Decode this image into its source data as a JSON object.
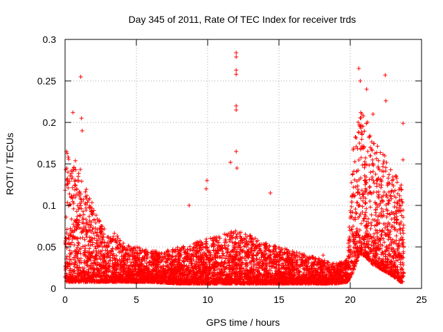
{
  "chart_data": {
    "type": "scatter",
    "title": "Day 345 of 2011, Rate Of TEC Index for receiver trds",
    "xlabel": "GPS time / hours",
    "ylabel": "ROTI / TECUs",
    "xlim": [
      0,
      25
    ],
    "ylim": [
      0,
      0.3
    ],
    "xticks": [
      0,
      5,
      10,
      15,
      20,
      25
    ],
    "yticks": [
      0,
      0.05,
      0.1,
      0.15,
      0.2,
      0.25,
      0.3
    ],
    "xtick_labels": [
      "0",
      "5",
      "10",
      "15",
      "20",
      "25"
    ],
    "ytick_labels": [
      "0",
      "0.05",
      "0.1",
      "0.15",
      "0.2",
      "0.25",
      "0.3"
    ],
    "grid": true,
    "grid_style": "dotted",
    "legend": "none",
    "marker": "+",
    "marker_color": "#ff0000",
    "point_count_approx": 6000,
    "envelope": [
      {
        "x": 0.0,
        "low": 0.008,
        "high": 0.17
      },
      {
        "x": 0.5,
        "low": 0.008,
        "high": 0.16
      },
      {
        "x": 1.0,
        "low": 0.008,
        "high": 0.15
      },
      {
        "x": 1.5,
        "low": 0.008,
        "high": 0.12
      },
      {
        "x": 2.0,
        "low": 0.008,
        "high": 0.1
      },
      {
        "x": 2.5,
        "low": 0.008,
        "high": 0.08
      },
      {
        "x": 3.0,
        "low": 0.008,
        "high": 0.065
      },
      {
        "x": 3.5,
        "low": 0.008,
        "high": 0.07
      },
      {
        "x": 4.0,
        "low": 0.008,
        "high": 0.055
      },
      {
        "x": 5.0,
        "low": 0.008,
        "high": 0.05
      },
      {
        "x": 6.0,
        "low": 0.008,
        "high": 0.045
      },
      {
        "x": 7.0,
        "low": 0.007,
        "high": 0.045
      },
      {
        "x": 8.0,
        "low": 0.006,
        "high": 0.05
      },
      {
        "x": 9.0,
        "low": 0.006,
        "high": 0.055
      },
      {
        "x": 10.0,
        "low": 0.006,
        "high": 0.06
      },
      {
        "x": 11.0,
        "low": 0.006,
        "high": 0.065
      },
      {
        "x": 12.0,
        "low": 0.006,
        "high": 0.07
      },
      {
        "x": 13.0,
        "low": 0.006,
        "high": 0.065
      },
      {
        "x": 14.0,
        "low": 0.006,
        "high": 0.055
      },
      {
        "x": 15.0,
        "low": 0.006,
        "high": 0.05
      },
      {
        "x": 16.0,
        "low": 0.006,
        "high": 0.045
      },
      {
        "x": 17.0,
        "low": 0.006,
        "high": 0.04
      },
      {
        "x": 18.0,
        "low": 0.006,
        "high": 0.035
      },
      {
        "x": 19.0,
        "low": 0.006,
        "high": 0.03
      },
      {
        "x": 19.8,
        "low": 0.008,
        "high": 0.035
      },
      {
        "x": 20.2,
        "low": 0.02,
        "high": 0.17
      },
      {
        "x": 20.6,
        "low": 0.04,
        "high": 0.21
      },
      {
        "x": 21.0,
        "low": 0.04,
        "high": 0.22
      },
      {
        "x": 21.5,
        "low": 0.03,
        "high": 0.18
      },
      {
        "x": 22.0,
        "low": 0.025,
        "high": 0.17
      },
      {
        "x": 22.5,
        "low": 0.02,
        "high": 0.16
      },
      {
        "x": 23.0,
        "low": 0.015,
        "high": 0.14
      },
      {
        "x": 23.5,
        "low": 0.008,
        "high": 0.13
      },
      {
        "x": 23.75,
        "low": 0.008,
        "high": 0.12
      }
    ],
    "spikes": [
      {
        "x": 1.1,
        "y": 0.255
      },
      {
        "x": 1.15,
        "y": 0.205
      },
      {
        "x": 1.2,
        "y": 0.19
      },
      {
        "x": 0.55,
        "y": 0.212
      },
      {
        "x": 0.1,
        "y": 0.165
      },
      {
        "x": 0.2,
        "y": 0.14
      },
      {
        "x": 12.0,
        "y": 0.284
      },
      {
        "x": 12.0,
        "y": 0.279
      },
      {
        "x": 12.0,
        "y": 0.263
      },
      {
        "x": 12.0,
        "y": 0.258
      },
      {
        "x": 12.0,
        "y": 0.22
      },
      {
        "x": 12.0,
        "y": 0.215
      },
      {
        "x": 12.0,
        "y": 0.165
      },
      {
        "x": 12.05,
        "y": 0.145
      },
      {
        "x": 11.6,
        "y": 0.152
      },
      {
        "x": 9.95,
        "y": 0.13
      },
      {
        "x": 9.9,
        "y": 0.12
      },
      {
        "x": 14.4,
        "y": 0.115
      },
      {
        "x": 8.7,
        "y": 0.1
      },
      {
        "x": 18.1,
        "y": 0.04
      },
      {
        "x": 20.6,
        "y": 0.265
      },
      {
        "x": 20.7,
        "y": 0.25
      },
      {
        "x": 21.15,
        "y": 0.24
      },
      {
        "x": 21.6,
        "y": 0.21
      },
      {
        "x": 22.45,
        "y": 0.257
      },
      {
        "x": 22.5,
        "y": 0.226
      },
      {
        "x": 23.7,
        "y": 0.199
      },
      {
        "x": 23.7,
        "y": 0.155
      }
    ]
  }
}
